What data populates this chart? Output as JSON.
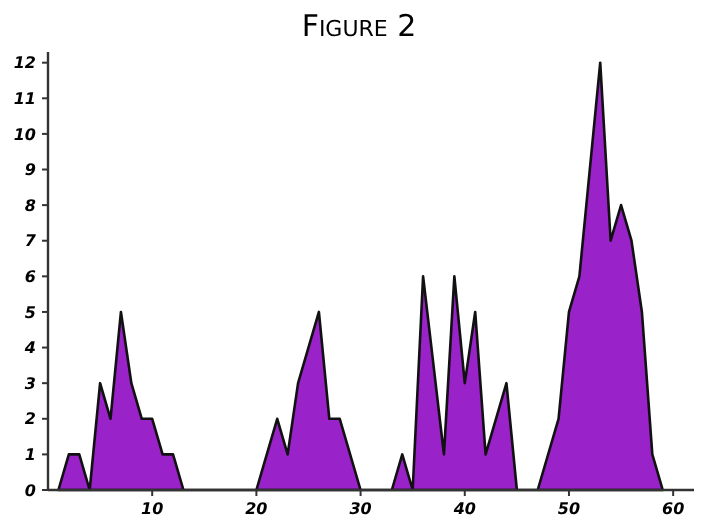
{
  "chart_data": {
    "type": "area",
    "title": "Figure 2",
    "x": [
      1,
      2,
      3,
      4,
      5,
      6,
      7,
      8,
      9,
      10,
      11,
      12,
      13,
      20,
      21,
      22,
      23,
      24,
      26,
      27,
      28,
      30,
      33,
      34,
      35,
      36,
      38,
      39,
      40,
      41,
      42,
      44,
      45,
      47,
      49,
      50,
      51,
      53,
      54,
      55,
      56,
      57,
      58,
      59
    ],
    "series": [
      {
        "color": "#9a22c9",
        "values": [
          0,
          1,
          1,
          0,
          3,
          2,
          5,
          3,
          2,
          2,
          1,
          1,
          0,
          0,
          1,
          2,
          1,
          3,
          5,
          2,
          2,
          0,
          0,
          1,
          0,
          6,
          1,
          6,
          3,
          5,
          1,
          3,
          0,
          0,
          2,
          5,
          6,
          12,
          7,
          8,
          7,
          5,
          1,
          0
        ]
      }
    ],
    "xlim": [
      0,
      62
    ],
    "xticks": [
      10,
      20,
      30,
      40,
      50,
      60
    ],
    "ylim": [
      0,
      12.3
    ],
    "yticks": [
      0,
      1,
      2,
      3,
      4,
      5,
      6,
      7,
      8,
      9,
      10,
      11,
      12
    ],
    "grid": false
  }
}
